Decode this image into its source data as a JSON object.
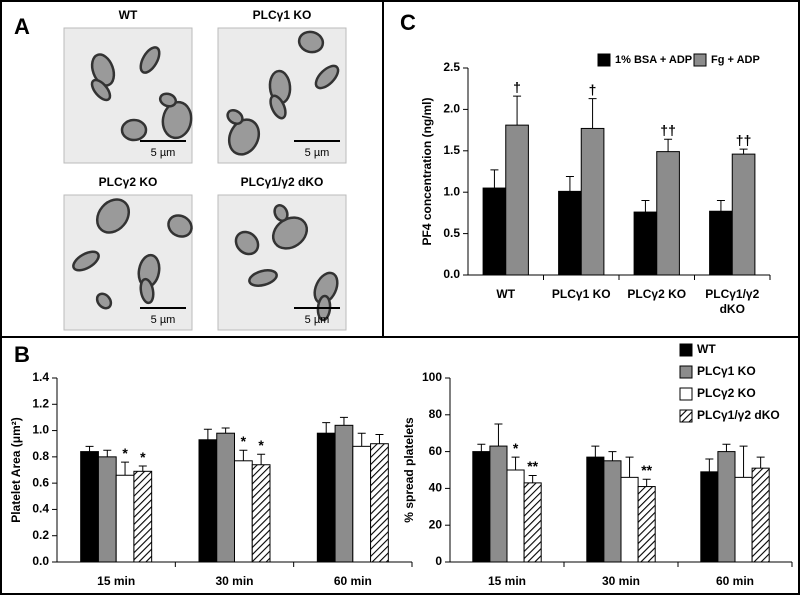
{
  "panel_labels": [
    "A",
    "B",
    "C"
  ],
  "images": [
    {
      "label": "WT",
      "scale": "5 µm"
    },
    {
      "label": "PLCγ1 KO",
      "scale": "5 µm"
    },
    {
      "label": "PLCγ2 KO",
      "scale": "5 µm"
    },
    {
      "label": "PLCγ1/γ2 dKO",
      "scale": "5 µm"
    }
  ],
  "chart_data": [
    {
      "type": "bar",
      "ylabel": "PF4 concentration (ng/ml)",
      "categories": [
        "WT",
        "PLCγ1 KO",
        "PLCγ2 KO",
        "PLCγ1/γ2 dKO"
      ],
      "series": [
        {
          "name": "1% BSA + ADP",
          "color": "#000000",
          "values": [
            1.05,
            1.01,
            0.76,
            0.77
          ],
          "errors": [
            0.22,
            0.18,
            0.14,
            0.13
          ]
        },
        {
          "name": "Fg + ADP",
          "color": "#8c8c8c",
          "values": [
            1.81,
            1.77,
            1.49,
            1.46
          ],
          "errors": [
            0.35,
            0.36,
            0.15,
            0.06
          ],
          "annotations": [
            "†",
            "†",
            "††",
            "††"
          ]
        }
      ],
      "ylim": [
        0,
        2.5
      ],
      "yticks": [
        {
          "value": 0,
          "label": "0.0"
        },
        {
          "value": 0.5,
          "label": "0.5"
        },
        {
          "value": 1,
          "label": "1.0"
        },
        {
          "value": 1.5,
          "label": "1.5"
        },
        {
          "value": 2,
          "label": "2.0"
        },
        {
          "value": 2.5,
          "label": "2.5"
        }
      ],
      "legend": "top-right"
    },
    {
      "type": "bar",
      "ylabel": "Platelet Area (μm²)",
      "categories": [
        "15 min",
        "30 min",
        "60 min"
      ],
      "series": [
        {
          "name": "WT",
          "color": "#000000",
          "values": [
            0.84,
            0.93,
            0.98
          ],
          "errors": [
            0.04,
            0.08,
            0.08
          ]
        },
        {
          "name": "PLCγ1 KO",
          "color": "#8c8c8c",
          "values": [
            0.8,
            0.98,
            1.04
          ],
          "errors": [
            0.05,
            0.04,
            0.06
          ]
        },
        {
          "name": "PLCγ2 KO",
          "color": "#ffffff",
          "values": [
            0.66,
            0.77,
            0.88
          ],
          "errors": [
            0.1,
            0.08,
            0.1
          ],
          "annotations": [
            "*",
            "*",
            null
          ]
        },
        {
          "name": "PLCγ1/γ2 dKO",
          "color": "#ffffff",
          "hatch": true,
          "values": [
            0.69,
            0.74,
            0.9
          ],
          "errors": [
            0.04,
            0.08,
            0.07
          ],
          "annotations": [
            "*",
            "*",
            null
          ]
        }
      ],
      "ylim": [
        0,
        1.4
      ],
      "yticks": [
        {
          "value": 0,
          "label": "0.0"
        },
        {
          "value": 0.2,
          "label": "0.2"
        },
        {
          "value": 0.4,
          "label": "0.4"
        },
        {
          "value": 0.6,
          "label": "0.6"
        },
        {
          "value": 0.8,
          "label": "0.8"
        },
        {
          "value": 1,
          "label": "1.0"
        },
        {
          "value": 1.2,
          "label": "1.2"
        },
        {
          "value": 1.4,
          "label": "1.4"
        }
      ],
      "legend": "outside-right"
    },
    {
      "type": "bar",
      "ylabel": "% spread platelets",
      "categories": [
        "15 min",
        "30 min",
        "60 min"
      ],
      "series": [
        {
          "color": "#000000",
          "values": [
            60,
            57,
            49
          ],
          "errors": [
            4,
            6,
            7
          ]
        },
        {
          "color": "#8c8c8c",
          "values": [
            63,
            55,
            60
          ],
          "errors": [
            12,
            5,
            4
          ]
        },
        {
          "color": "#ffffff",
          "values": [
            50,
            46,
            46
          ],
          "errors": [
            7,
            11,
            17
          ],
          "annotations": [
            "*",
            null,
            null
          ]
        },
        {
          "color": "#ffffff",
          "hatch": true,
          "values": [
            43,
            41,
            51
          ],
          "errors": [
            4,
            4,
            6
          ],
          "annotations": [
            "**",
            "**",
            null
          ]
        }
      ],
      "ylim": [
        0,
        100
      ],
      "yticks": [
        0,
        20,
        40,
        60,
        80,
        100
      ]
    }
  ]
}
